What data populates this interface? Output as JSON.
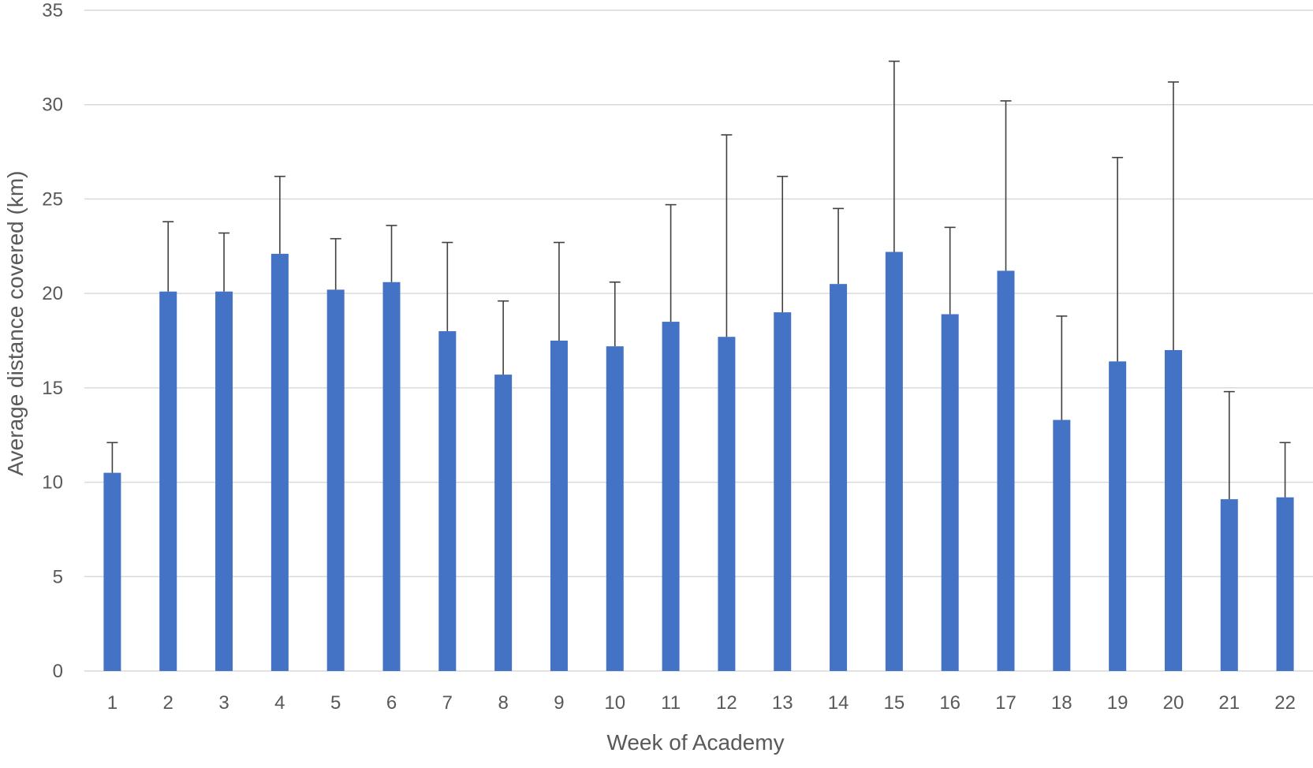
{
  "chart_data": {
    "type": "bar",
    "title": "",
    "xlabel": "Week of Academy",
    "ylabel": "Average distance covered (km)",
    "categories": [
      "1",
      "2",
      "3",
      "4",
      "5",
      "6",
      "7",
      "8",
      "9",
      "10",
      "11",
      "12",
      "13",
      "14",
      "15",
      "16",
      "17",
      "18",
      "19",
      "20",
      "21",
      "22"
    ],
    "series": [
      {
        "values": [
          10.5,
          20.1,
          20.1,
          22.1,
          20.2,
          20.6,
          18.0,
          15.7,
          17.5,
          17.2,
          18.5,
          17.7,
          19.0,
          20.5,
          22.2,
          18.9,
          21.2,
          13.3,
          16.4,
          17.0,
          9.1,
          9.2
        ],
        "error_upper": [
          12.1,
          23.8,
          23.2,
          26.2,
          22.9,
          23.6,
          22.7,
          19.6,
          22.7,
          20.6,
          24.7,
          28.4,
          26.2,
          24.5,
          32.3,
          23.5,
          30.2,
          18.8,
          27.2,
          31.2,
          14.8,
          12.1
        ]
      }
    ],
    "ylim": [
      0,
      35
    ],
    "yticks": [
      0,
      5,
      10,
      15,
      20,
      25,
      30,
      35
    ],
    "grid": true,
    "legend": "none",
    "colors": {
      "bar": "#4472c4",
      "error_bar": "#404040",
      "grid": "#d9d9d9",
      "text": "#595959"
    }
  }
}
